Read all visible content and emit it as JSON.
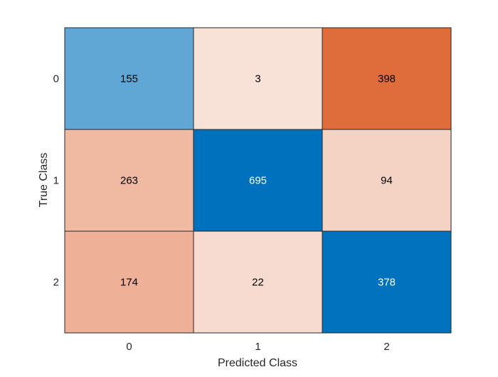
{
  "chart_data": {
    "type": "heatmap",
    "title": "",
    "xlabel": "Predicted Class",
    "ylabel": "True Class",
    "x_categories": [
      "0",
      "1",
      "2"
    ],
    "y_categories": [
      "0",
      "1",
      "2"
    ],
    "values": [
      [
        155,
        3,
        398
      ],
      [
        263,
        695,
        94
      ],
      [
        174,
        22,
        378
      ]
    ],
    "grid": true,
    "legend": "none"
  },
  "colors": {
    "diagonal_dark": "#0072bd",
    "off_diagonal_dark": "#d95319",
    "light_base": "#ffffff",
    "grid_line": "#262626",
    "text_dark": "#000000",
    "text_light": "#ffffff"
  }
}
